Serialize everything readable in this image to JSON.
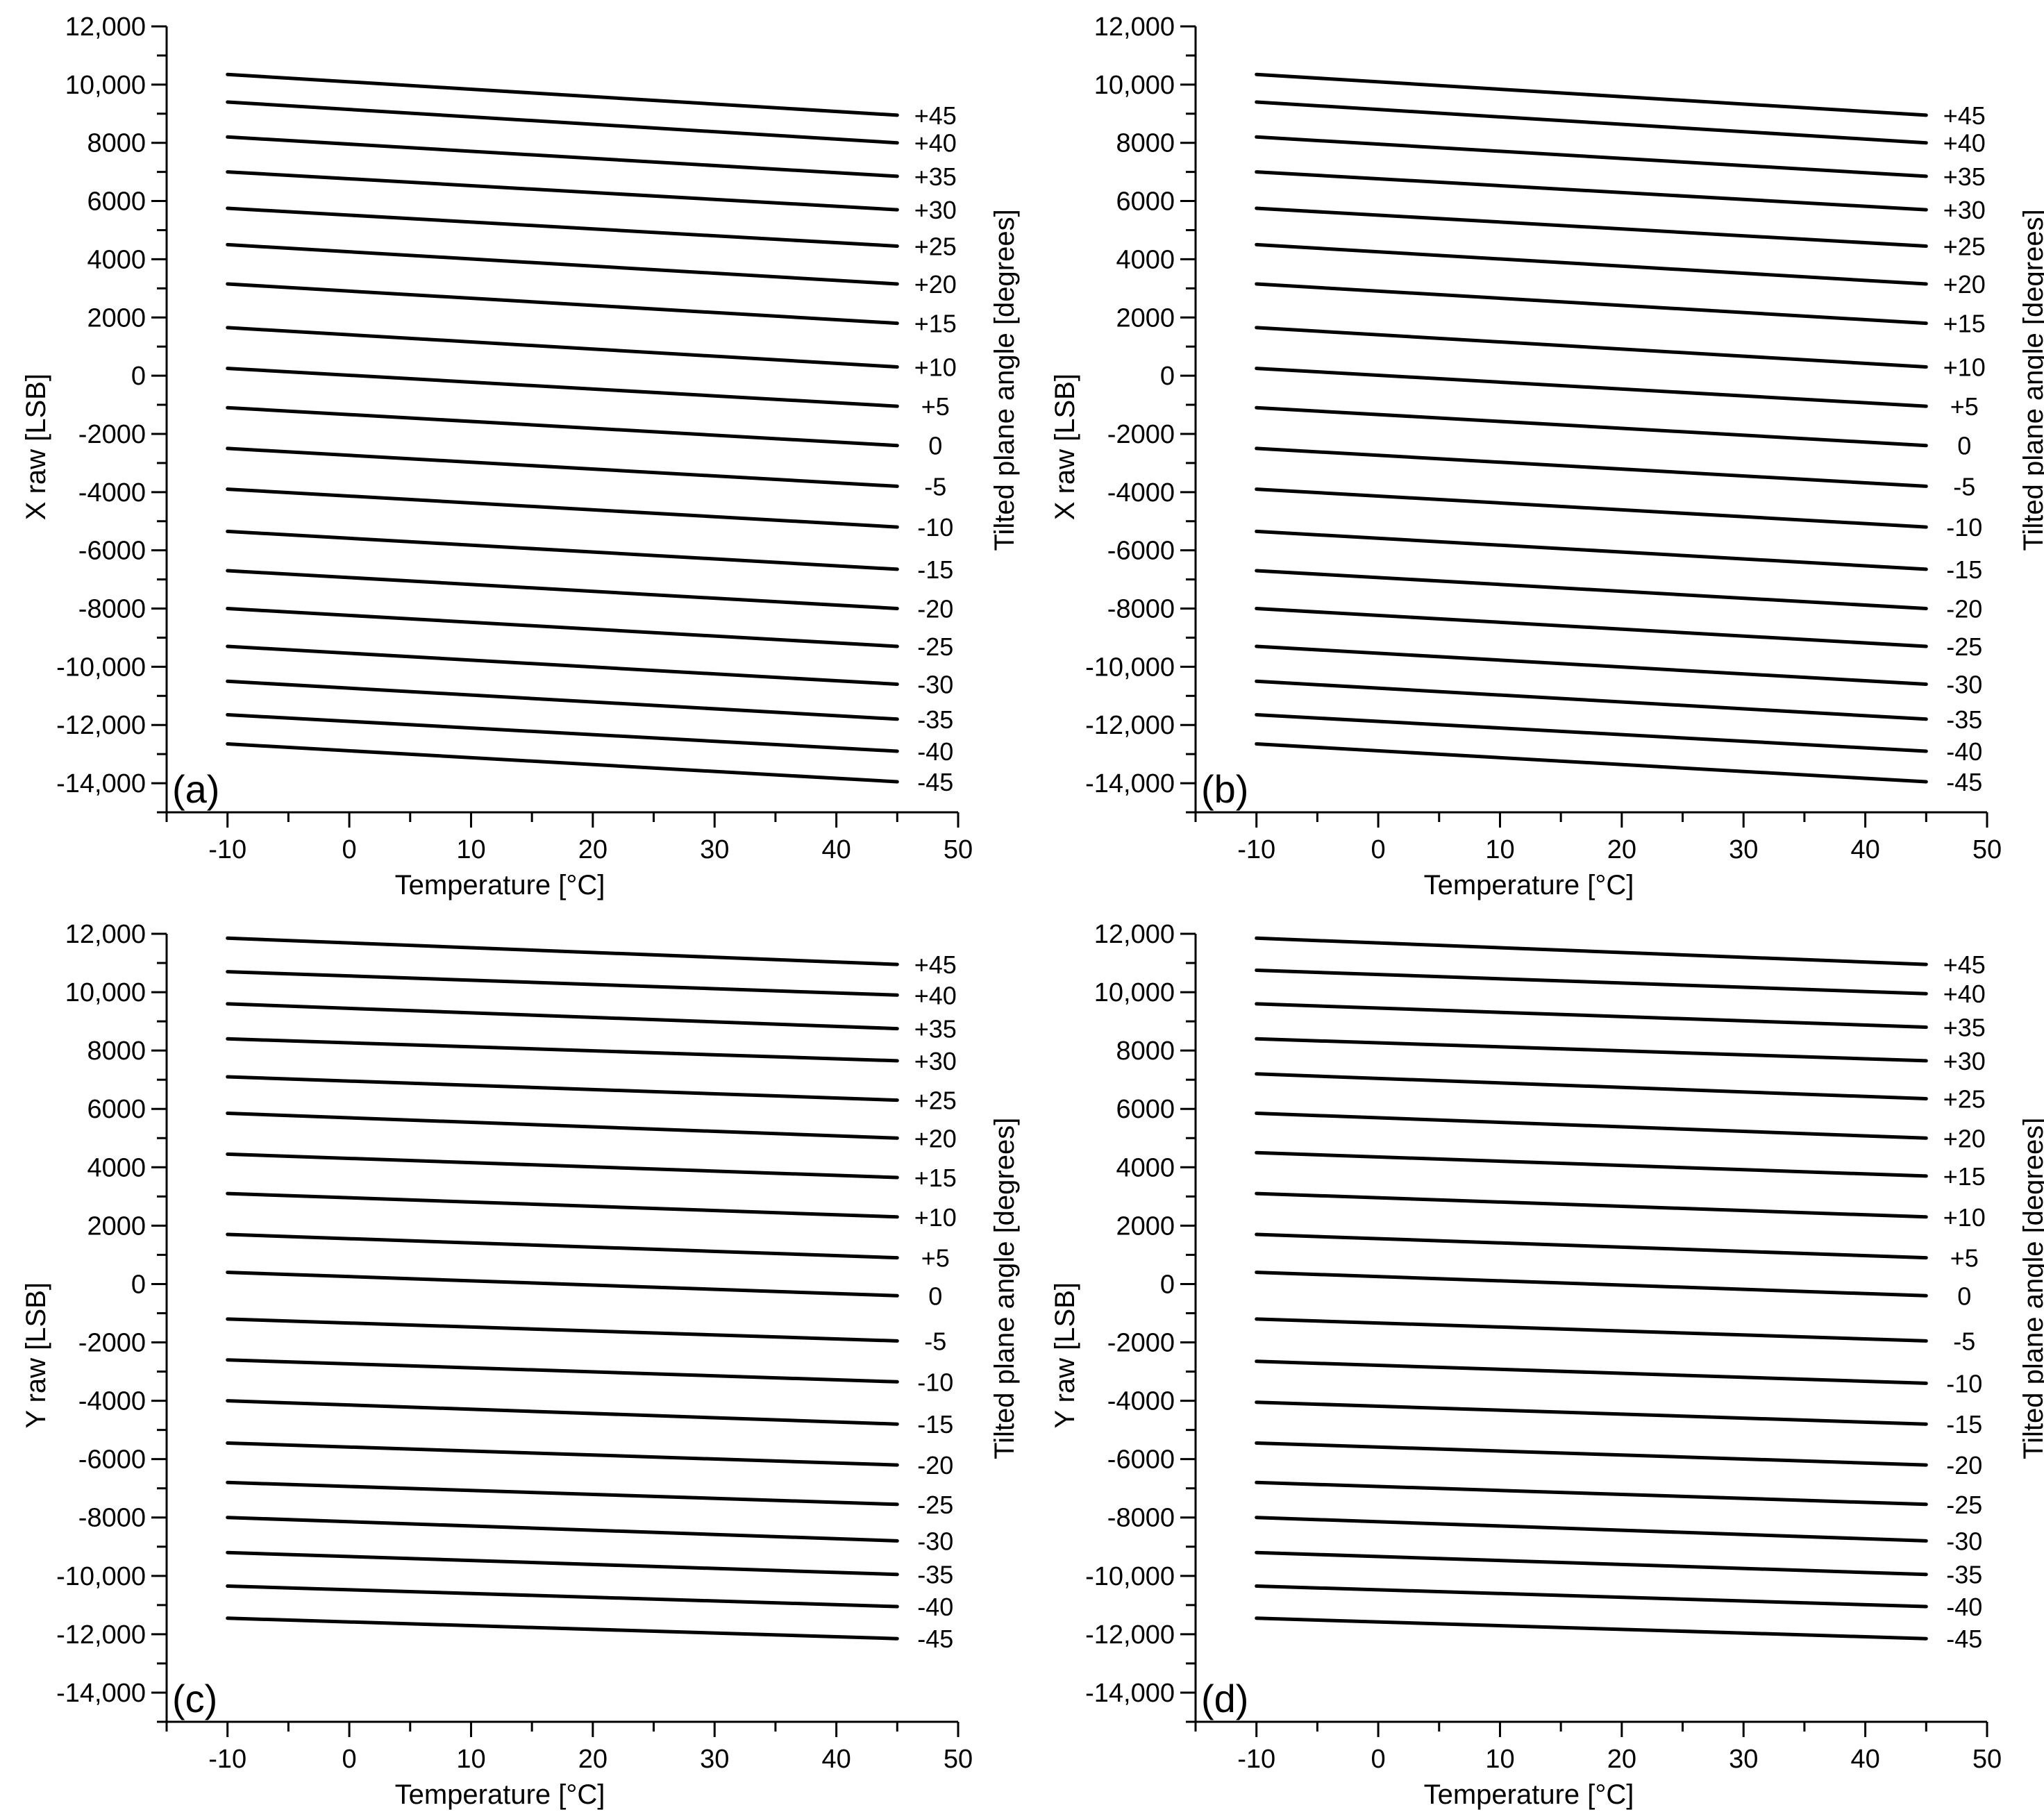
{
  "figure": {
    "background": "#ffffff",
    "line_color": "#000000"
  },
  "chart_data": [
    {
      "type": "line",
      "panel_label": "(a)",
      "xlabel": "Temperature [°C]",
      "ylabel": "X raw [LSB]",
      "right_axis_label": "Tilted plane angle [degrees]",
      "xlim": [
        -15,
        50
      ],
      "ylim": [
        -15000,
        12000
      ],
      "x_ticks": [
        "-10",
        "0",
        "10",
        "20",
        "30",
        "40",
        "50"
      ],
      "x_tick_values": [
        -10,
        0,
        10,
        20,
        30,
        40,
        50
      ],
      "y_ticks": [
        "12,000",
        "10,000",
        "8000",
        "6000",
        "4000",
        "2000",
        "0",
        "-2000",
        "-4000",
        "-6000",
        "-8000",
        "-10,000",
        "-12,000",
        "-14,000"
      ],
      "y_tick_values": [
        12000,
        10000,
        8000,
        6000,
        4000,
        2000,
        0,
        -2000,
        -4000,
        -6000,
        -8000,
        -10000,
        -12000,
        -14000
      ],
      "x": [
        -10,
        45
      ],
      "series": [
        {
          "name": "+45",
          "values": [
            10350,
            8950
          ]
        },
        {
          "name": "+40",
          "values": [
            9400,
            8000
          ]
        },
        {
          "name": "+35",
          "values": [
            8200,
            6850
          ]
        },
        {
          "name": "+30",
          "values": [
            7000,
            5700
          ]
        },
        {
          "name": "+25",
          "values": [
            5750,
            4450
          ]
        },
        {
          "name": "+20",
          "values": [
            4500,
            3150
          ]
        },
        {
          "name": "+15",
          "values": [
            3150,
            1800
          ]
        },
        {
          "name": "+10",
          "values": [
            1650,
            300
          ]
        },
        {
          "name": "+5",
          "values": [
            250,
            -1050
          ]
        },
        {
          "name": "0",
          "values": [
            -1100,
            -2400
          ]
        },
        {
          "name": "-5",
          "values": [
            -2500,
            -3800
          ]
        },
        {
          "name": "-10",
          "values": [
            -3900,
            -5200
          ]
        },
        {
          "name": "-15",
          "values": [
            -5350,
            -6650
          ]
        },
        {
          "name": "-20",
          "values": [
            -6700,
            -8000
          ]
        },
        {
          "name": "-25",
          "values": [
            -8000,
            -9300
          ]
        },
        {
          "name": "-30",
          "values": [
            -9300,
            -10600
          ]
        },
        {
          "name": "-35",
          "values": [
            -10500,
            -11800
          ]
        },
        {
          "name": "-40",
          "values": [
            -11650,
            -12900
          ]
        },
        {
          "name": "-45",
          "values": [
            -12650,
            -13950
          ]
        }
      ]
    },
    {
      "type": "line",
      "panel_label": "(b)",
      "xlabel": "Temperature [°C]",
      "ylabel": "X raw [LSB]",
      "right_axis_label": "Tilted plane angle [degrees]",
      "xlim": [
        -15,
        50
      ],
      "ylim": [
        -15000,
        12000
      ],
      "x_ticks": [
        "-10",
        "0",
        "10",
        "20",
        "30",
        "40",
        "50"
      ],
      "x_tick_values": [
        -10,
        0,
        10,
        20,
        30,
        40,
        50
      ],
      "y_ticks": [
        "12,000",
        "10,000",
        "8000",
        "6000",
        "4000",
        "2000",
        "0",
        "-2000",
        "-4000",
        "-6000",
        "-8000",
        "-10,000",
        "-12,000",
        "-14,000"
      ],
      "y_tick_values": [
        12000,
        10000,
        8000,
        6000,
        4000,
        2000,
        0,
        -2000,
        -4000,
        -6000,
        -8000,
        -10000,
        -12000,
        -14000
      ],
      "x": [
        -10,
        45
      ],
      "series": [
        {
          "name": "+45",
          "values": [
            10350,
            8950
          ]
        },
        {
          "name": "+40",
          "values": [
            9400,
            8000
          ]
        },
        {
          "name": "+35",
          "values": [
            8200,
            6850
          ]
        },
        {
          "name": "+30",
          "values": [
            7000,
            5700
          ]
        },
        {
          "name": "+25",
          "values": [
            5750,
            4450
          ]
        },
        {
          "name": "+20",
          "values": [
            4500,
            3150
          ]
        },
        {
          "name": "+15",
          "values": [
            3150,
            1800
          ]
        },
        {
          "name": "+10",
          "values": [
            1650,
            300
          ]
        },
        {
          "name": "+5",
          "values": [
            250,
            -1050
          ]
        },
        {
          "name": "0",
          "values": [
            -1100,
            -2400
          ]
        },
        {
          "name": "-5",
          "values": [
            -2500,
            -3800
          ]
        },
        {
          "name": "-10",
          "values": [
            -3900,
            -5200
          ]
        },
        {
          "name": "-15",
          "values": [
            -5350,
            -6650
          ]
        },
        {
          "name": "-20",
          "values": [
            -6700,
            -8000
          ]
        },
        {
          "name": "-25",
          "values": [
            -8000,
            -9300
          ]
        },
        {
          "name": "-30",
          "values": [
            -9300,
            -10600
          ]
        },
        {
          "name": "-35",
          "values": [
            -10500,
            -11800
          ]
        },
        {
          "name": "-40",
          "values": [
            -11650,
            -12900
          ]
        },
        {
          "name": "-45",
          "values": [
            -12650,
            -13950
          ]
        }
      ]
    },
    {
      "type": "line",
      "panel_label": "(c)",
      "xlabel": "Temperature [°C]",
      "ylabel": "Y raw [LSB]",
      "right_axis_label": "Tilted plane angle [degrees]",
      "xlim": [
        -15,
        50
      ],
      "ylim": [
        -15000,
        12000
      ],
      "x_ticks": [
        "-10",
        "0",
        "10",
        "20",
        "30",
        "40",
        "50"
      ],
      "x_tick_values": [
        -10,
        0,
        10,
        20,
        30,
        40,
        50
      ],
      "y_ticks": [
        "12,000",
        "10,000",
        "8000",
        "6000",
        "4000",
        "2000",
        "0",
        "-2000",
        "-4000",
        "-6000",
        "-8000",
        "-10,000",
        "-12,000",
        "-14,000"
      ],
      "y_tick_values": [
        12000,
        10000,
        8000,
        6000,
        4000,
        2000,
        0,
        -2000,
        -4000,
        -6000,
        -8000,
        -10000,
        -12000,
        -14000
      ],
      "x": [
        -10,
        45
      ],
      "series": [
        {
          "name": "+45",
          "values": [
            11850,
            10950
          ]
        },
        {
          "name": "+40",
          "values": [
            10700,
            9900
          ]
        },
        {
          "name": "+35",
          "values": [
            9600,
            8750
          ]
        },
        {
          "name": "+30",
          "values": [
            8400,
            7650
          ]
        },
        {
          "name": "+25",
          "values": [
            7100,
            6300
          ]
        },
        {
          "name": "+20",
          "values": [
            5850,
            5000
          ]
        },
        {
          "name": "+15",
          "values": [
            4450,
            3650
          ]
        },
        {
          "name": "+10",
          "values": [
            3100,
            2300
          ]
        },
        {
          "name": "+5",
          "values": [
            1700,
            900
          ]
        },
        {
          "name": "0",
          "values": [
            400,
            -400
          ]
        },
        {
          "name": "-5",
          "values": [
            -1200,
            -1950
          ]
        },
        {
          "name": "-10",
          "values": [
            -2600,
            -3350
          ]
        },
        {
          "name": "-15",
          "values": [
            -4000,
            -4800
          ]
        },
        {
          "name": "-20",
          "values": [
            -5450,
            -6200
          ]
        },
        {
          "name": "-25",
          "values": [
            -6800,
            -7550
          ]
        },
        {
          "name": "-30",
          "values": [
            -8000,
            -8800
          ]
        },
        {
          "name": "-35",
          "values": [
            -9200,
            -9950
          ]
        },
        {
          "name": "-40",
          "values": [
            -10350,
            -11050
          ]
        },
        {
          "name": "-45",
          "values": [
            -11450,
            -12150
          ]
        }
      ]
    },
    {
      "type": "line",
      "panel_label": "(d)",
      "xlabel": "Temperature [°C]",
      "ylabel": "Y raw [LSB]",
      "right_axis_label": "Tilted plane angle [degrees]",
      "xlim": [
        -15,
        50
      ],
      "ylim": [
        -15000,
        12000
      ],
      "x_ticks": [
        "-10",
        "0",
        "10",
        "20",
        "30",
        "40",
        "50"
      ],
      "x_tick_values": [
        -10,
        0,
        10,
        20,
        30,
        40,
        50
      ],
      "y_ticks": [
        "12,000",
        "10,000",
        "8000",
        "6000",
        "4000",
        "2000",
        "0",
        "-2000",
        "-4000",
        "-6000",
        "-8000",
        "-10,000",
        "-12,000",
        "-14,000"
      ],
      "y_tick_values": [
        12000,
        10000,
        8000,
        6000,
        4000,
        2000,
        0,
        -2000,
        -4000,
        -6000,
        -8000,
        -10000,
        -12000,
        -14000
      ],
      "x": [
        -10,
        45
      ],
      "series": [
        {
          "name": "+45",
          "values": [
            11850,
            10950
          ]
        },
        {
          "name": "+40",
          "values": [
            10750,
            9950
          ]
        },
        {
          "name": "+35",
          "values": [
            9600,
            8800
          ]
        },
        {
          "name": "+30",
          "values": [
            8400,
            7650
          ]
        },
        {
          "name": "+25",
          "values": [
            7200,
            6350
          ]
        },
        {
          "name": "+20",
          "values": [
            5850,
            5000
          ]
        },
        {
          "name": "+15",
          "values": [
            4500,
            3700
          ]
        },
        {
          "name": "+10",
          "values": [
            3100,
            2300
          ]
        },
        {
          "name": "+5",
          "values": [
            1700,
            900
          ]
        },
        {
          "name": "0",
          "values": [
            400,
            -400
          ]
        },
        {
          "name": "-5",
          "values": [
            -1200,
            -1950
          ]
        },
        {
          "name": "-10",
          "values": [
            -2650,
            -3400
          ]
        },
        {
          "name": "-15",
          "values": [
            -4050,
            -4800
          ]
        },
        {
          "name": "-20",
          "values": [
            -5450,
            -6200
          ]
        },
        {
          "name": "-25",
          "values": [
            -6800,
            -7550
          ]
        },
        {
          "name": "-30",
          "values": [
            -8000,
            -8800
          ]
        },
        {
          "name": "-35",
          "values": [
            -9200,
            -9950
          ]
        },
        {
          "name": "-40",
          "values": [
            -10350,
            -11050
          ]
        },
        {
          "name": "-45",
          "values": [
            -11450,
            -12150
          ]
        }
      ]
    }
  ]
}
